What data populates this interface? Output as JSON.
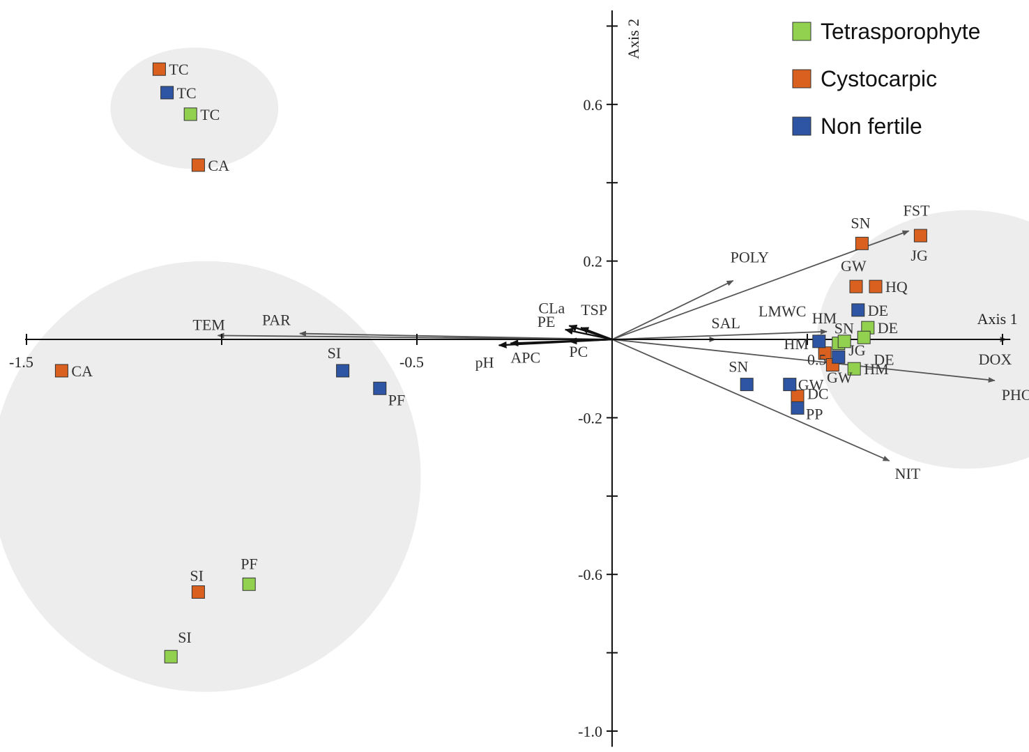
{
  "chart_data": {
    "type": "scatter",
    "subtype": "ordination-biplot",
    "x_axis": {
      "label": "Axis 1",
      "range": [
        -1.5,
        1.0
      ],
      "ticks": [
        -1.5,
        -1.0,
        -0.5,
        0.0,
        0.5,
        1.0
      ],
      "tick_labels": [
        "-1.5",
        "-0.5",
        "0.5"
      ],
      "tick_label_values": [
        -1.5,
        -0.5,
        0.5
      ]
    },
    "y_axis": {
      "label": "Axis 2",
      "range": [
        -1.0,
        0.8
      ],
      "ticks": [
        -1.0,
        -0.8,
        -0.6,
        -0.4,
        -0.2,
        0.0,
        0.2,
        0.4,
        0.6,
        0.8
      ],
      "tick_labels": [
        "0.6",
        "0.2",
        "-0.2",
        "-0.6",
        "-1.0"
      ],
      "tick_label_values": [
        0.6,
        0.2,
        -0.2,
        -0.6,
        -1.0
      ]
    },
    "grid": false,
    "legend": {
      "placement": "top-right",
      "entries": [
        {
          "name": "Tetrasporophyte",
          "color": "#92d050"
        },
        {
          "name": "Cystocarpic",
          "color": "#d9601e"
        },
        {
          "name": "Non fertile",
          "color": "#2e54a4"
        }
      ]
    },
    "clusters": [
      {
        "center": [
          -1.07,
          0.59
        ],
        "radius": [
          0.215,
          0.155
        ]
      },
      {
        "center": [
          -1.04,
          -0.35
        ],
        "radius": [
          0.55,
          0.55
        ]
      },
      {
        "center": [
          0.91,
          0.0
        ],
        "radius": [
          0.385,
          0.33
        ]
      }
    ],
    "vectors": [
      {
        "name": "FST",
        "x": 0.76,
        "y": 0.277
      },
      {
        "name": "POLY",
        "x": 0.31,
        "y": 0.15
      },
      {
        "name": "SAL",
        "x": 0.265,
        "y": 0.0
      },
      {
        "name": "LMWC",
        "x": 0.55,
        "y": 0.02
      },
      {
        "name": "PHO",
        "x": 0.98,
        "y": -0.105
      },
      {
        "name": "DOX",
        "x": 1.01,
        "y": 0.0
      },
      {
        "name": "NIT",
        "x": 0.71,
        "y": -0.31
      },
      {
        "name": "TEM",
        "x": -1.01,
        "y": 0.01
      },
      {
        "name": "PAR",
        "x": -0.8,
        "y": 0.015
      },
      {
        "name": "pH",
        "x": -0.29,
        "y": -0.015
      },
      {
        "name": "APC",
        "x": -0.26,
        "y": -0.01
      },
      {
        "name": "PC",
        "x": -0.11,
        "y": -0.005
      },
      {
        "name": "CLa",
        "x": -0.11,
        "y": 0.035
      },
      {
        "name": "PE",
        "x": -0.12,
        "y": 0.025
      },
      {
        "name": "TSP",
        "x": -0.08,
        "y": 0.03
      }
    ],
    "series": [
      {
        "name": "Tetrasporophyte",
        "color": "#92d050",
        "points": [
          {
            "label": "TC",
            "x": -1.08,
            "y": 0.575
          },
          {
            "label": "PF",
            "x": -0.93,
            "y": -0.625
          },
          {
            "label": "SI",
            "x": -1.13,
            "y": -0.81
          },
          {
            "label": "DE",
            "x": 0.655,
            "y": 0.03
          },
          {
            "label": "JG",
            "x": 0.645,
            "y": 0.005
          },
          {
            "label": "SN",
            "x": 0.58,
            "y": -0.01
          },
          {
            "label": "",
            "x": 0.595,
            "y": -0.005
          },
          {
            "label": "HM",
            "x": 0.62,
            "y": -0.075
          }
        ]
      },
      {
        "name": "Cystocarpic",
        "color": "#d9601e",
        "points": [
          {
            "label": "TC",
            "x": -1.16,
            "y": 0.69
          },
          {
            "label": "CA",
            "x": -1.06,
            "y": 0.445
          },
          {
            "label": "CA",
            "x": -1.41,
            "y": -0.08
          },
          {
            "label": "SI",
            "x": -1.06,
            "y": -0.645
          },
          {
            "label": "SN",
            "x": 0.64,
            "y": 0.245
          },
          {
            "label": "JG",
            "x": 0.79,
            "y": 0.265
          },
          {
            "label": "GW",
            "x": 0.625,
            "y": 0.135
          },
          {
            "label": "HQ",
            "x": 0.675,
            "y": 0.135
          },
          {
            "label": "",
            "x": 0.545,
            "y": -0.035
          },
          {
            "label": "",
            "x": 0.565,
            "y": -0.065
          },
          {
            "label": "DC",
            "x": 0.475,
            "y": -0.145
          }
        ]
      },
      {
        "name": "Non fertile",
        "color": "#2e54a4",
        "points": [
          {
            "label": "TC",
            "x": -1.14,
            "y": 0.63
          },
          {
            "label": "SI",
            "x": -0.69,
            "y": -0.08
          },
          {
            "label": "PF",
            "x": -0.595,
            "y": -0.125
          },
          {
            "label": "DE",
            "x": 0.63,
            "y": 0.075
          },
          {
            "label": "HM",
            "x": 0.53,
            "y": -0.005
          },
          {
            "label": "",
            "x": 0.58,
            "y": -0.045
          },
          {
            "label": "SN",
            "x": 0.345,
            "y": -0.115
          },
          {
            "label": "GW",
            "x": 0.455,
            "y": -0.115
          },
          {
            "label": "PP",
            "x": 0.475,
            "y": -0.175
          }
        ]
      }
    ],
    "free_labels": [
      {
        "text": "HM",
        "x": 0.44,
        "y": -0.025
      },
      {
        "text": "0.5",
        "x": 0.5,
        "y": -0.065
      },
      {
        "text": "DE",
        "x": 0.67,
        "y": -0.065
      },
      {
        "text": "GW",
        "x": 0.55,
        "y": -0.11
      }
    ]
  }
}
